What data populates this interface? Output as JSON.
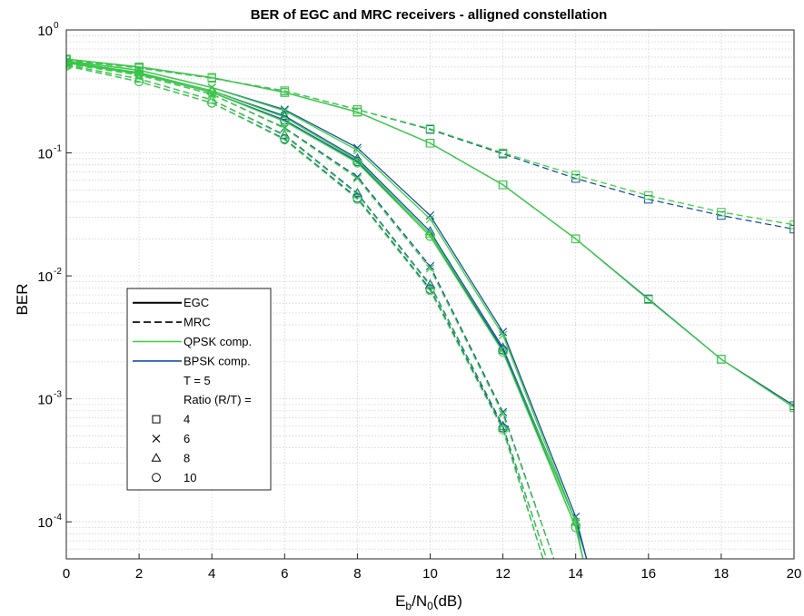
{
  "chart_data": {
    "type": "line",
    "title": "BER of EGC and MRC receivers - alligned constellation",
    "xlabel": {
      "main": "E",
      "sub1": "b",
      "mid": "/N",
      "sub2": "0",
      "tail": "(dB)"
    },
    "ylabel": "BER",
    "x_scale": "linear",
    "y_scale": "log",
    "xlim": [
      0,
      20
    ],
    "ylim": [
      5e-05,
      1
    ],
    "x_ticks": [
      0,
      2,
      4,
      6,
      8,
      10,
      12,
      14,
      16,
      18,
      20
    ],
    "y_ticks": [
      {
        "value": 1,
        "base": "10",
        "exp": "0"
      },
      {
        "value": 0.1,
        "base": "10",
        "exp": "-1"
      },
      {
        "value": 0.01,
        "base": "10",
        "exp": "-2"
      },
      {
        "value": 0.001,
        "base": "10",
        "exp": "-3"
      },
      {
        "value": 0.0001,
        "base": "10",
        "exp": "-4"
      }
    ],
    "grid": true,
    "colors": {
      "qpsk": "#3cd23c",
      "bpsk": "#1c4fa6",
      "grid": "#d0d0d0",
      "axis": "#262626"
    },
    "series": [
      {
        "receiver": "EGC",
        "mod": "bpsk",
        "marker": "square",
        "x": [
          0,
          2,
          4,
          6,
          8,
          10,
          12,
          14,
          16,
          18,
          20
        ],
        "y": [
          0.58,
          0.5,
          0.41,
          0.31,
          0.215,
          0.12,
          0.055,
          0.02,
          0.0065,
          0.0021,
          0.00088
        ]
      },
      {
        "receiver": "EGC",
        "mod": "qpsk",
        "marker": "square",
        "x": [
          0,
          2,
          4,
          6,
          8,
          10,
          12,
          14,
          16,
          18,
          20
        ],
        "y": [
          0.58,
          0.5,
          0.41,
          0.31,
          0.215,
          0.12,
          0.055,
          0.02,
          0.0064,
          0.0021,
          0.00085
        ]
      },
      {
        "receiver": "MRC",
        "mod": "bpsk",
        "marker": "square",
        "x": [
          0,
          2,
          4,
          6,
          8,
          10,
          12,
          14,
          16,
          18,
          20
        ],
        "y": [
          0.57,
          0.49,
          0.405,
          0.32,
          0.225,
          0.155,
          0.098,
          0.062,
          0.042,
          0.031,
          0.024
        ]
      },
      {
        "receiver": "MRC",
        "mod": "qpsk",
        "marker": "square",
        "x": [
          0,
          2,
          4,
          6,
          8,
          10,
          12,
          14,
          16,
          18,
          20
        ],
        "y": [
          0.57,
          0.49,
          0.405,
          0.32,
          0.225,
          0.157,
          0.1,
          0.066,
          0.045,
          0.033,
          0.026
        ]
      },
      {
        "receiver": "EGC",
        "mod": "bpsk",
        "marker": "x",
        "x": [
          0,
          2,
          4,
          6,
          8,
          10,
          12,
          14,
          14.3
        ],
        "y": [
          0.56,
          0.47,
          0.34,
          0.225,
          0.11,
          0.031,
          0.0035,
          0.00011,
          5e-05
        ]
      },
      {
        "receiver": "EGC",
        "mod": "qpsk",
        "marker": "x",
        "x": [
          0,
          2,
          4,
          6,
          8,
          10,
          12,
          14,
          14.3
        ],
        "y": [
          0.56,
          0.47,
          0.34,
          0.22,
          0.105,
          0.029,
          0.0033,
          0.0001,
          5e-05
        ]
      },
      {
        "receiver": "MRC",
        "mod": "bpsk",
        "marker": "x",
        "x": [
          0,
          2,
          4,
          6,
          8,
          10,
          12,
          13.4
        ],
        "y": [
          0.53,
          0.43,
          0.3,
          0.16,
          0.064,
          0.012,
          0.00078,
          5e-05
        ]
      },
      {
        "receiver": "MRC",
        "mod": "qpsk",
        "marker": "x",
        "x": [
          0,
          2,
          4,
          6,
          8,
          10,
          12,
          13.4
        ],
        "y": [
          0.53,
          0.43,
          0.3,
          0.158,
          0.062,
          0.0115,
          0.00075,
          5e-05
        ]
      },
      {
        "receiver": "EGC",
        "mod": "bpsk",
        "marker": "triangle",
        "x": [
          0,
          2,
          4,
          6,
          8,
          10,
          12,
          14,
          14.3
        ],
        "y": [
          0.55,
          0.45,
          0.32,
          0.2,
          0.09,
          0.023,
          0.0026,
          0.0001,
          5e-05
        ]
      },
      {
        "receiver": "EGC",
        "mod": "qpsk",
        "marker": "triangle",
        "x": [
          0,
          2,
          4,
          6,
          8,
          10,
          12,
          14,
          14.2
        ],
        "y": [
          0.55,
          0.45,
          0.32,
          0.195,
          0.087,
          0.022,
          0.0025,
          0.0001,
          5e-05
        ]
      },
      {
        "receiver": "MRC",
        "mod": "bpsk",
        "marker": "triangle",
        "x": [
          0,
          2,
          4,
          6,
          8,
          10,
          12,
          13.2
        ],
        "y": [
          0.52,
          0.4,
          0.27,
          0.14,
          0.047,
          0.0085,
          0.0006,
          5e-05
        ]
      },
      {
        "receiver": "MRC",
        "mod": "qpsk",
        "marker": "triangle",
        "x": [
          0,
          2,
          4,
          6,
          8,
          10,
          12,
          13.2
        ],
        "y": [
          0.52,
          0.4,
          0.27,
          0.138,
          0.046,
          0.0083,
          0.00058,
          5e-05
        ]
      },
      {
        "receiver": "EGC",
        "mod": "bpsk",
        "marker": "circle",
        "x": [
          0,
          2,
          4,
          6,
          8,
          10,
          12,
          14,
          14.2
        ],
        "y": [
          0.54,
          0.44,
          0.31,
          0.185,
          0.085,
          0.021,
          0.0025,
          9e-05,
          5e-05
        ]
      },
      {
        "receiver": "EGC",
        "mod": "qpsk",
        "marker": "circle",
        "x": [
          0,
          2,
          4,
          6,
          8,
          10,
          12,
          14,
          14.2
        ],
        "y": [
          0.54,
          0.44,
          0.31,
          0.18,
          0.083,
          0.021,
          0.0024,
          9e-05,
          5e-05
        ]
      },
      {
        "receiver": "MRC",
        "mod": "bpsk",
        "marker": "circle",
        "x": [
          0,
          2,
          4,
          6,
          8,
          10,
          12,
          13.1
        ],
        "y": [
          0.51,
          0.38,
          0.255,
          0.13,
          0.043,
          0.0078,
          0.00058,
          5e-05
        ]
      },
      {
        "receiver": "MRC",
        "mod": "qpsk",
        "marker": "circle",
        "x": [
          0,
          2,
          4,
          6,
          8,
          10,
          12,
          13.1
        ],
        "y": [
          0.51,
          0.38,
          0.255,
          0.128,
          0.042,
          0.0076,
          0.00056,
          5e-05
        ]
      }
    ],
    "legend": {
      "placement": "center-left",
      "entries": [
        {
          "key": "egc",
          "sample": "solid",
          "label": "EGC"
        },
        {
          "key": "mrc",
          "sample": "dashed",
          "label": "MRC"
        },
        {
          "key": "qpsk",
          "sample": "qpsk",
          "label": "QPSK comp."
        },
        {
          "key": "bpsk",
          "sample": "bpsk",
          "label": "BPSK comp."
        },
        {
          "key": "t",
          "sample": "none",
          "label": "T = 5"
        },
        {
          "key": "ratio",
          "sample": "none",
          "label": "Ratio (R/T) ="
        },
        {
          "key": "r4",
          "sample": "square",
          "label": "4"
        },
        {
          "key": "r6",
          "sample": "x",
          "label": "6"
        },
        {
          "key": "r8",
          "sample": "triangle",
          "label": "8"
        },
        {
          "key": "r10",
          "sample": "circle",
          "label": "10"
        }
      ]
    }
  }
}
